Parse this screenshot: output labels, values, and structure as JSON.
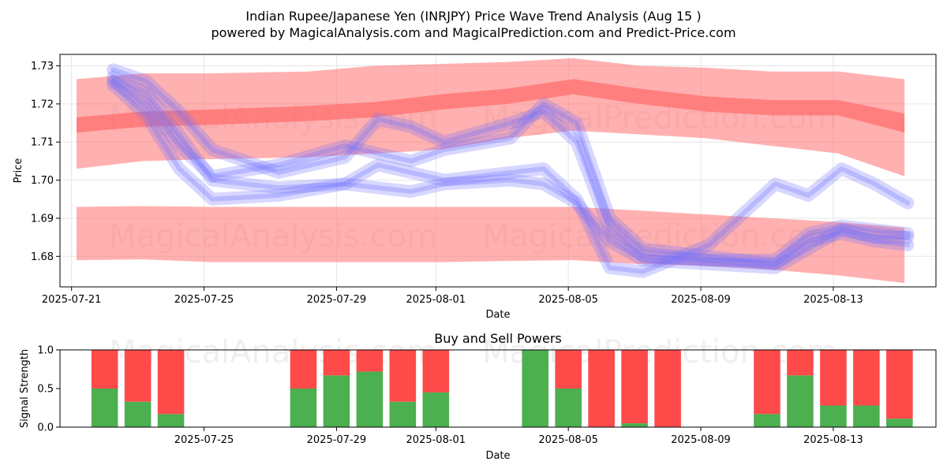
{
  "title": "Indian Rupee/Japanese Yen (INRJPY) Price Wave Trend Analysis (Aug 15 )",
  "subtitle": "powered by MagicalAnalysis.com and MagicalPrediction.com and Predict-Price.com",
  "watermarks": [
    "MagicalAnalysis.com",
    "MagicalPrediction.com"
  ],
  "colors": {
    "red_band": "#ff6f6f",
    "blue_wave": "#6f6fff",
    "buy": "#4caf50",
    "sell": "#ff4a4a",
    "grid": "#e6e6e6"
  },
  "chart_data": [
    {
      "type": "area",
      "title": "",
      "xlabel": "Date",
      "ylabel": "Price",
      "ylim": [
        1.672,
        1.733
      ],
      "x_ticks": [
        "2025-07-21",
        "2025-07-25",
        "2025-07-29",
        "2025-08-01",
        "2025-08-05",
        "2025-08-09",
        "2025-08-13"
      ],
      "y_ticks": [
        "1.68",
        "1.69",
        "1.70",
        "1.71",
        "1.72",
        "1.73"
      ],
      "grid": true,
      "bands": [
        {
          "name": "",
          "x": [
            "2025-07-21",
            "2025-07-23",
            "2025-07-25",
            "2025-07-28",
            "2025-07-30",
            "2025-08-01",
            "2025-08-03",
            "2025-08-05",
            "2025-08-07",
            "2025-08-09",
            "2025-08-11",
            "2025-08-13",
            "2025-08-15"
          ],
          "upper": [
            1.7265,
            1.728,
            1.728,
            1.7285,
            1.73,
            1.7305,
            1.731,
            1.732,
            1.73,
            1.7295,
            1.7285,
            1.7285,
            1.7265
          ],
          "lower": [
            1.703,
            1.705,
            1.7055,
            1.706,
            1.707,
            1.708,
            1.711,
            1.713,
            1.712,
            1.711,
            1.709,
            1.707,
            1.701
          ]
        },
        {
          "name": "",
          "x": [
            "2025-07-21",
            "2025-07-23",
            "2025-07-25",
            "2025-07-28",
            "2025-07-30",
            "2025-08-01",
            "2025-08-03",
            "2025-08-05",
            "2025-08-07",
            "2025-08-09",
            "2025-08-11",
            "2025-08-13",
            "2025-08-15"
          ],
          "upper": [
            1.7165,
            1.718,
            1.7185,
            1.7195,
            1.7205,
            1.7225,
            1.724,
            1.7265,
            1.724,
            1.722,
            1.721,
            1.721,
            1.7175
          ],
          "lower": [
            1.7125,
            1.714,
            1.7145,
            1.7155,
            1.7165,
            1.7185,
            1.72,
            1.7225,
            1.72,
            1.718,
            1.717,
            1.717,
            1.7125
          ]
        },
        {
          "name": "",
          "x": [
            "2025-07-21",
            "2025-07-23",
            "2025-07-25",
            "2025-07-28",
            "2025-07-30",
            "2025-08-01",
            "2025-08-03",
            "2025-08-05",
            "2025-08-07",
            "2025-08-09",
            "2025-08-11",
            "2025-08-13",
            "2025-08-15"
          ],
          "upper": [
            1.693,
            1.6932,
            1.693,
            1.693,
            1.693,
            1.693,
            1.693,
            1.693,
            1.692,
            1.691,
            1.69,
            1.689,
            1.6875
          ],
          "lower": [
            1.679,
            1.6792,
            1.6785,
            1.6785,
            1.6785,
            1.6785,
            1.6788,
            1.679,
            1.678,
            1.6775,
            1.6765,
            1.675,
            1.673
          ]
        }
      ],
      "waves": [
        {
          "name": "",
          "x": [
            "2025-07-22",
            "2025-07-23",
            "2025-07-24",
            "2025-07-25",
            "2025-07-27",
            "2025-07-29",
            "2025-07-30",
            "2025-07-31",
            "2025-08-01",
            "2025-08-03",
            "2025-08-04",
            "2025-08-05",
            "2025-08-06",
            "2025-08-07",
            "2025-08-09",
            "2025-08-11",
            "2025-08-12",
            "2025-08-13",
            "2025-08-14",
            "2025-08-15"
          ],
          "y": [
            1.727,
            1.723,
            1.712,
            1.7,
            1.698,
            1.699,
            1.698,
            1.697,
            1.699,
            1.7,
            1.699,
            1.694,
            1.684,
            1.679,
            1.678,
            1.677,
            1.682,
            1.687,
            1.685,
            1.685
          ]
        },
        {
          "name": "",
          "x": [
            "2025-07-22",
            "2025-07-23",
            "2025-07-24",
            "2025-07-25",
            "2025-07-27",
            "2025-07-29",
            "2025-07-30",
            "2025-07-31",
            "2025-08-01",
            "2025-08-03",
            "2025-08-04",
            "2025-08-05",
            "2025-08-06",
            "2025-08-07",
            "2025-08-09",
            "2025-08-11",
            "2025-08-12",
            "2025-08-13",
            "2025-08-14",
            "2025-08-15"
          ],
          "y": [
            1.729,
            1.726,
            1.718,
            1.708,
            1.702,
            1.706,
            1.716,
            1.714,
            1.71,
            1.715,
            1.718,
            1.71,
            1.687,
            1.68,
            1.679,
            1.679,
            1.686,
            1.688,
            1.687,
            1.686
          ]
        },
        {
          "name": "",
          "x": [
            "2025-07-22",
            "2025-07-23",
            "2025-07-24",
            "2025-07-25",
            "2025-07-27",
            "2025-07-29",
            "2025-07-30",
            "2025-07-31",
            "2025-08-01",
            "2025-08-03",
            "2025-08-04",
            "2025-08-05",
            "2025-08-06",
            "2025-08-07",
            "2025-08-09",
            "2025-08-11",
            "2025-08-12",
            "2025-08-13",
            "2025-08-14",
            "2025-08-15"
          ],
          "y": [
            1.725,
            1.717,
            1.703,
            1.695,
            1.696,
            1.699,
            1.704,
            1.702,
            1.7,
            1.702,
            1.703,
            1.695,
            1.677,
            1.676,
            1.683,
            1.699,
            1.696,
            1.703,
            1.699,
            1.694
          ]
        },
        {
          "name": "",
          "x": [
            "2025-07-22",
            "2025-07-23",
            "2025-07-24",
            "2025-07-25",
            "2025-07-27",
            "2025-07-29",
            "2025-07-30",
            "2025-07-31",
            "2025-08-01",
            "2025-08-03",
            "2025-08-04",
            "2025-08-05",
            "2025-08-06",
            "2025-08-07",
            "2025-08-09",
            "2025-08-11",
            "2025-08-12",
            "2025-08-13",
            "2025-08-14",
            "2025-08-15"
          ],
          "y": [
            1.726,
            1.72,
            1.709,
            1.701,
            1.704,
            1.709,
            1.707,
            1.705,
            1.708,
            1.711,
            1.72,
            1.715,
            1.69,
            1.682,
            1.68,
            1.678,
            1.684,
            1.686,
            1.684,
            1.683
          ]
        }
      ]
    },
    {
      "type": "bar",
      "title": "Buy and Sell Powers",
      "xlabel": "Date",
      "ylabel": "Signal Strength",
      "ylim": [
        0,
        1
      ],
      "y_ticks": [
        "0.0",
        "0.5",
        "1.0"
      ],
      "x_ticks": [
        "2025-07-25",
        "2025-07-29",
        "2025-08-01",
        "2025-08-05",
        "2025-08-09",
        "2025-08-13"
      ],
      "categories": [
        "2025-07-22",
        "2025-07-23",
        "2025-07-24",
        "2025-07-28",
        "2025-07-29",
        "2025-07-30",
        "2025-07-31",
        "2025-08-01",
        "2025-08-04",
        "2025-08-05",
        "2025-08-06",
        "2025-08-07",
        "2025-08-08",
        "2025-08-11",
        "2025-08-12",
        "2025-08-13",
        "2025-08-14",
        "2025-08-15"
      ],
      "series": [
        {
          "name": "",
          "values": [
            0.5,
            0.33,
            0.17,
            0.5,
            0.67,
            0.72,
            0.33,
            0.45,
            1.0,
            0.5,
            0.0,
            0.05,
            0.0,
            0.17,
            0.67,
            0.28,
            0.28,
            0.11
          ]
        },
        {
          "name": "",
          "values": [
            0.5,
            0.67,
            0.83,
            0.5,
            0.33,
            0.28,
            0.67,
            0.55,
            0.0,
            0.5,
            1.0,
            0.95,
            1.0,
            0.83,
            0.33,
            0.72,
            0.72,
            0.89
          ]
        }
      ]
    }
  ]
}
